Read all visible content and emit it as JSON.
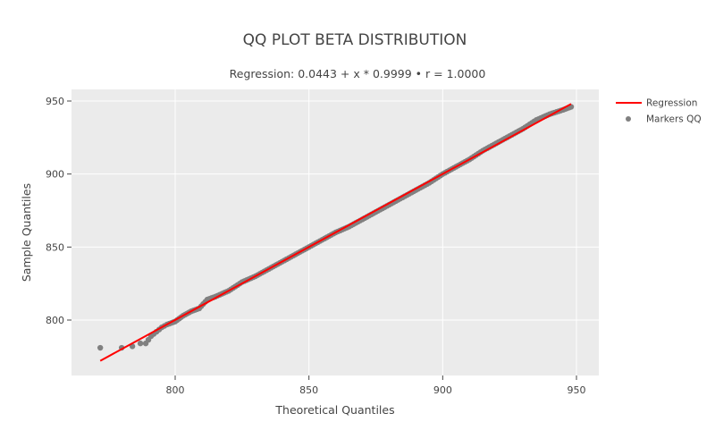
{
  "chart_data": {
    "type": "scatter",
    "title": "QQ PLOT BETA DISTRIBUTION",
    "subtitle": "Regression: 0.0443 + x * 0.9999 • r = 1.0000",
    "xlabel": "Theoretical Quantiles",
    "ylabel": "Sample Quantiles",
    "xlim": [
      762,
      958
    ],
    "ylim": [
      762,
      958
    ],
    "xticks": [
      800,
      850,
      900,
      950
    ],
    "yticks": [
      800,
      850,
      900,
      950
    ],
    "grid": true,
    "legend_position": "right-top",
    "series": [
      {
        "name": "Regression",
        "kind": "line",
        "color": "#ff0000",
        "x": [
          772,
          948
        ],
        "y": [
          772.1,
          948.0
        ]
      },
      {
        "name": "Markers QQ",
        "kind": "markers",
        "color": "#808080",
        "x": [
          772,
          780,
          784,
          787,
          789,
          791,
          793,
          795,
          797,
          800,
          803,
          806,
          809,
          812,
          815,
          820,
          825,
          830,
          835,
          840,
          845,
          850,
          855,
          860,
          865,
          870,
          875,
          880,
          885,
          890,
          895,
          900,
          905,
          910,
          915,
          920,
          925,
          930,
          935,
          940,
          945,
          948
        ],
        "y": [
          781,
          781,
          782,
          784,
          784,
          789,
          792,
          795,
          797,
          799,
          803,
          806,
          808,
          814,
          816,
          820,
          826,
          830,
          835,
          840,
          845,
          850,
          855,
          860,
          864,
          869,
          874,
          879,
          884,
          889,
          894,
          900,
          905,
          910,
          916,
          921,
          926,
          931,
          937,
          941,
          944,
          946
        ]
      }
    ]
  },
  "plot": {
    "background": "#ebebeb",
    "grid_color": "#ffffff"
  },
  "legend": {
    "items": [
      {
        "label": "Regression",
        "color": "#ff0000",
        "symbol": "line"
      },
      {
        "label": "Markers QQ",
        "color": "#808080",
        "symbol": "dot"
      }
    ]
  }
}
